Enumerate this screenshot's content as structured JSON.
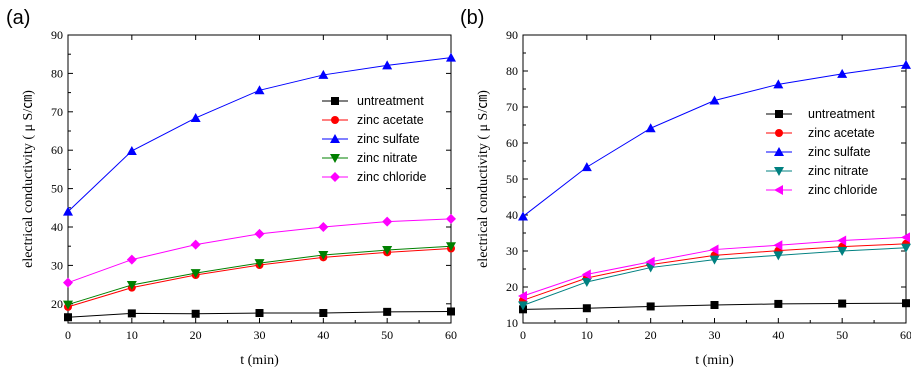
{
  "chart_data": [
    {
      "type": "line",
      "panel_label": "(a)",
      "xlabel": "t (min)",
      "ylabel": "electrical conductivity ( μ S/㎝)",
      "x": [
        0,
        10,
        20,
        30,
        40,
        50,
        60
      ],
      "xlim": [
        0,
        60
      ],
      "ylim": [
        15,
        90
      ],
      "xticks": [
        0,
        10,
        20,
        30,
        40,
        50,
        60
      ],
      "yticks": [
        20,
        30,
        40,
        50,
        60,
        70,
        80,
        90
      ],
      "grid": false,
      "legend_placement": "right",
      "series": [
        {
          "name": "untreatment",
          "color": "#000000",
          "marker": "square",
          "values": [
            16.5,
            17.5,
            17.4,
            17.6,
            17.6,
            17.9,
            18.0
          ]
        },
        {
          "name": "zinc acetate",
          "color": "#ff0000",
          "marker": "circle",
          "values": [
            19.2,
            24.2,
            27.5,
            30.1,
            32.1,
            33.4,
            34.4
          ]
        },
        {
          "name": "zinc sulfate",
          "color": "#0000ff",
          "marker": "triangle-up",
          "values": [
            44.0,
            59.8,
            68.4,
            75.6,
            79.6,
            82.1,
            84.1
          ]
        },
        {
          "name": "zinc nitrate",
          "color": "#008000",
          "marker": "triangle-down",
          "values": [
            19.8,
            24.9,
            28.0,
            30.6,
            32.7,
            34.0,
            35.0
          ]
        },
        {
          "name": "zinc chloride",
          "color": "#ff00ff",
          "marker": "diamond",
          "values": [
            25.5,
            31.5,
            35.4,
            38.2,
            40.0,
            41.4,
            42.1
          ]
        }
      ]
    },
    {
      "type": "line",
      "panel_label": "(b)",
      "xlabel": "t (min)",
      "ylabel": "electrical conductivity ( μ S/㎝)",
      "x": [
        0,
        10,
        20,
        30,
        40,
        50,
        60
      ],
      "xlim": [
        0,
        60
      ],
      "ylim": [
        10,
        90
      ],
      "xticks": [
        0,
        10,
        20,
        30,
        40,
        50,
        60
      ],
      "yticks": [
        10,
        20,
        30,
        40,
        50,
        60,
        70,
        80,
        90
      ],
      "grid": false,
      "legend_placement": "right",
      "series": [
        {
          "name": "untreatment",
          "color": "#000000",
          "marker": "square",
          "values": [
            13.8,
            14.1,
            14.6,
            15.0,
            15.3,
            15.4,
            15.5
          ]
        },
        {
          "name": "zinc acetate",
          "color": "#ff0000",
          "marker": "circle",
          "values": [
            16.3,
            22.5,
            26.2,
            28.8,
            30.1,
            31.2,
            32.0
          ]
        },
        {
          "name": "zinc sulfate",
          "color": "#0000ff",
          "marker": "triangle-up",
          "values": [
            39.6,
            53.3,
            64.1,
            71.8,
            76.3,
            79.2,
            81.7
          ]
        },
        {
          "name": "zinc nitrate",
          "color": "#008080",
          "marker": "triangle-down",
          "values": [
            14.9,
            21.4,
            25.4,
            27.6,
            28.8,
            30.0,
            30.9
          ]
        },
        {
          "name": "zinc chloride",
          "color": "#ff00ff",
          "marker": "triangle-left",
          "values": [
            17.5,
            23.5,
            27.0,
            30.4,
            31.6,
            32.9,
            33.8
          ]
        }
      ]
    }
  ]
}
